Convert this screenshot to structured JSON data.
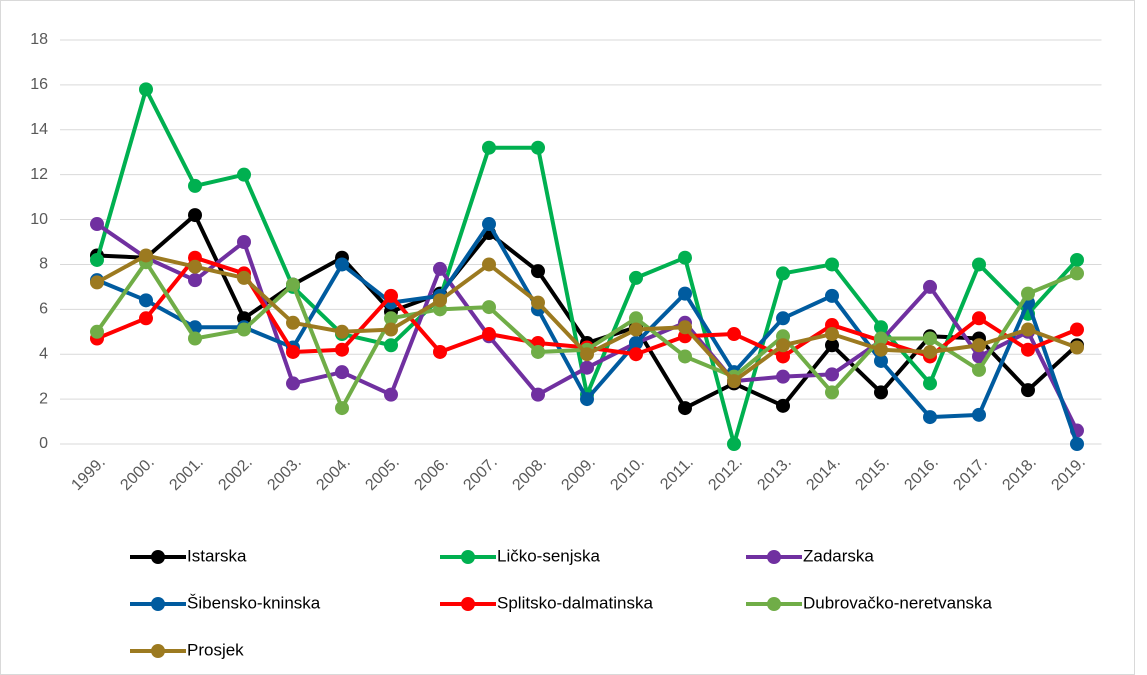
{
  "chart_data": {
    "type": "line",
    "categories": [
      "1999.",
      "2000.",
      "2001.",
      "2002.",
      "2003.",
      "2004.",
      "2005.",
      "2006.",
      "2007.",
      "2008.",
      "2009.",
      "2010.",
      "2011.",
      "2012.",
      "2013.",
      "2014.",
      "2015.",
      "2016.",
      "2017.",
      "2018.",
      "2019."
    ],
    "series": [
      {
        "name": "Istarska",
        "color": "#000000",
        "values": [
          8.4,
          8.3,
          10.2,
          5.6,
          7.1,
          8.3,
          5.9,
          6.7,
          9.4,
          7.7,
          4.5,
          5.2,
          1.6,
          2.7,
          1.7,
          4.4,
          2.3,
          4.8,
          4.7,
          2.4,
          4.4
        ]
      },
      {
        "name": "Ličko-senjska",
        "color": "#00b050",
        "values": [
          8.2,
          15.8,
          11.5,
          12.0,
          7.0,
          4.9,
          4.4,
          6.5,
          13.2,
          13.2,
          2.2,
          7.4,
          8.3,
          0,
          7.6,
          8.0,
          5.2,
          2.7,
          8.0,
          5.8,
          8.2
        ]
      },
      {
        "name": "Zadarska",
        "color": "#7030a0",
        "values": [
          9.8,
          8.3,
          7.3,
          9.0,
          2.7,
          3.2,
          2.2,
          7.8,
          4.8,
          2.2,
          3.4,
          4.5,
          5.4,
          2.8,
          3.0,
          3.1,
          4.6,
          7.0,
          3.9,
          5.0,
          0.6
        ]
      },
      {
        "name": "Šibensko-kninska",
        "color": "#005b9f",
        "values": [
          7.3,
          6.4,
          5.2,
          5.2,
          4.3,
          8.0,
          6.3,
          6.6,
          9.8,
          6.0,
          2.0,
          4.5,
          6.7,
          3.2,
          5.6,
          6.6,
          3.7,
          1.2,
          1.3,
          6.3,
          0
        ]
      },
      {
        "name": "Splitsko-dalmatinska",
        "color": "#ff0000",
        "values": [
          4.7,
          5.6,
          8.3,
          7.6,
          4.1,
          4.2,
          6.6,
          4.1,
          4.9,
          4.5,
          4.3,
          4.0,
          4.8,
          4.9,
          3.9,
          5.3,
          4.6,
          3.9,
          5.6,
          4.2,
          5.1
        ]
      },
      {
        "name": "Dubrovačko-neretvanska",
        "color": "#70ad47",
        "values": [
          5.0,
          8.1,
          4.7,
          5.1,
          7.1,
          1.6,
          5.6,
          6.0,
          6.1,
          4.1,
          4.2,
          5.6,
          3.9,
          3.0,
          4.8,
          2.3,
          4.7,
          4.7,
          3.3,
          6.7,
          7.6
        ]
      },
      {
        "name": "Prosjek",
        "color": "#9c7a20",
        "values": [
          7.2,
          8.4,
          7.9,
          7.4,
          5.4,
          5.0,
          5.1,
          6.4,
          8.0,
          6.3,
          4.0,
          5.1,
          5.2,
          2.8,
          4.4,
          4.9,
          4.2,
          4.1,
          4.4,
          5.1,
          4.3
        ]
      }
    ],
    "ylim": [
      0,
      18
    ],
    "yticks": [
      0,
      2,
      4,
      6,
      8,
      10,
      12,
      14,
      16,
      18
    ],
    "grid": true,
    "legend": "bottom"
  }
}
